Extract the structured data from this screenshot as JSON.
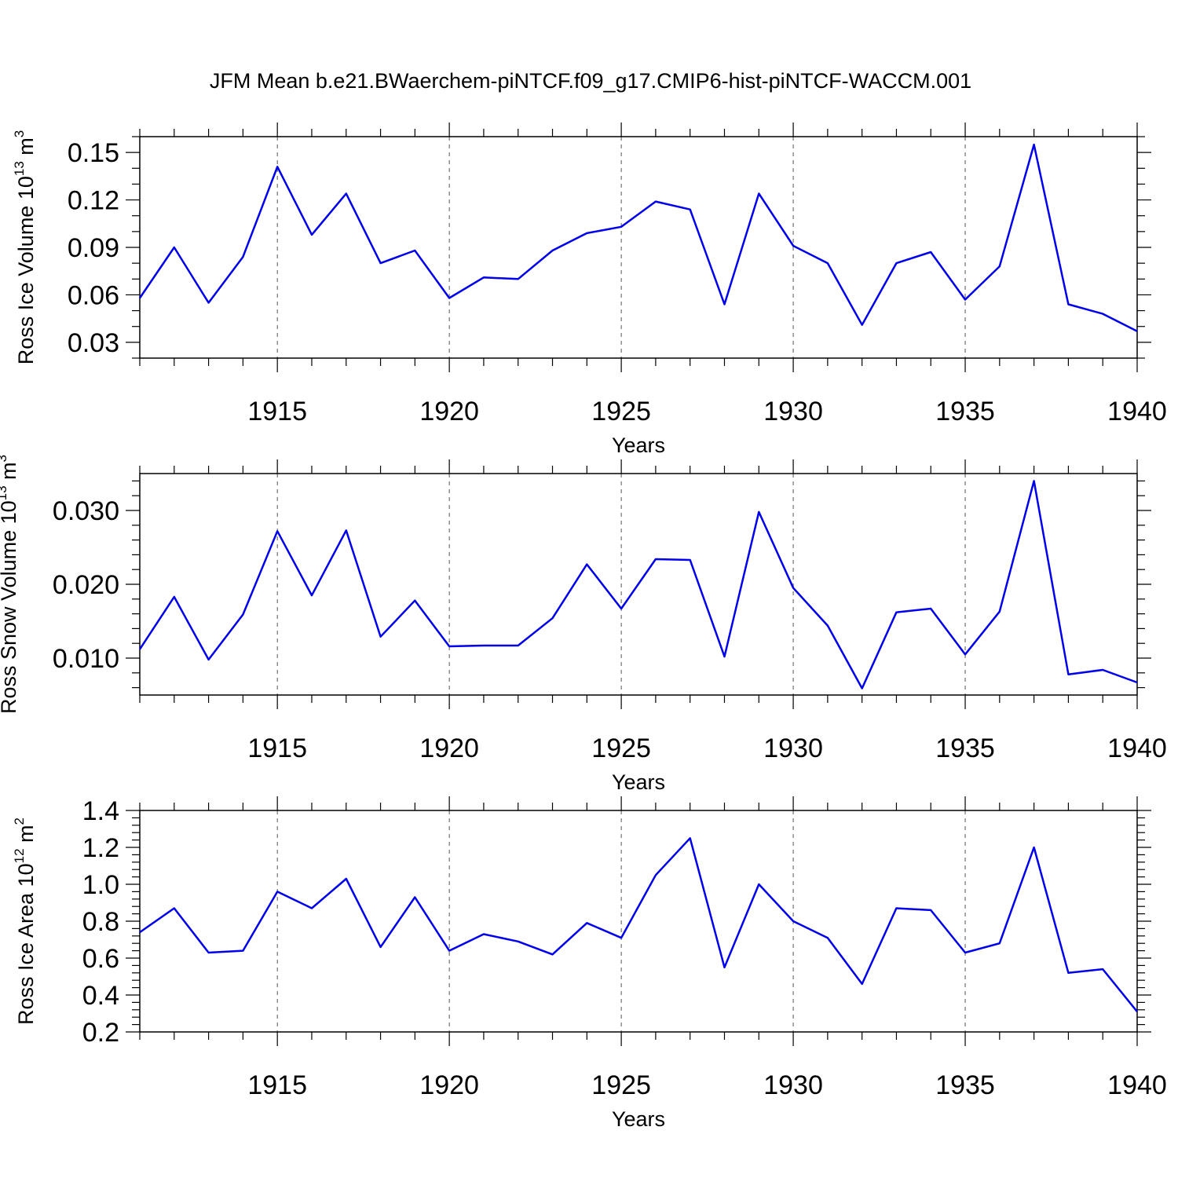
{
  "title": "JFM Mean b.e21.BWaerchem-piNTCF.f09_g17.CMIP6-hist-piNTCF-WACCM.001",
  "line_color": "#0000ee",
  "chart_data": [
    {
      "type": "line",
      "ylabel": "Ross Ice Volume 10",
      "ylabel_exp": "13",
      "ylabel_unit": " m",
      "ylabel_unit_exp": "3",
      "xlabel": "Years",
      "xlim": [
        1911,
        1940
      ],
      "ylim": [
        0.02,
        0.16
      ],
      "yticks": [
        0.03,
        0.06,
        0.09,
        0.12,
        0.15
      ],
      "yticks_labels": [
        "0.03",
        "0.06",
        "0.09",
        "0.12",
        "0.15"
      ],
      "yminor": 0.01,
      "xticks": [
        1915,
        1920,
        1925,
        1930,
        1935,
        1940
      ],
      "xticks_labels": [
        "1915",
        "1920",
        "1925",
        "1930",
        "1935",
        "1940"
      ],
      "grid_x": true,
      "x": [
        1911,
        1912,
        1913,
        1914,
        1915,
        1916,
        1917,
        1918,
        1919,
        1920,
        1921,
        1922,
        1923,
        1924,
        1925,
        1926,
        1927,
        1928,
        1929,
        1930,
        1931,
        1932,
        1933,
        1934,
        1935,
        1936,
        1937,
        1938,
        1939,
        1940
      ],
      "values": [
        0.058,
        0.09,
        0.055,
        0.084,
        0.141,
        0.098,
        0.124,
        0.08,
        0.088,
        0.058,
        0.071,
        0.07,
        0.088,
        0.099,
        0.103,
        0.119,
        0.114,
        0.054,
        0.124,
        0.091,
        0.08,
        0.041,
        0.08,
        0.087,
        0.057,
        0.078,
        0.155,
        0.054,
        0.048,
        0.037
      ]
    },
    {
      "type": "line",
      "ylabel": "Ross Snow Volume 10",
      "ylabel_exp": "13",
      "ylabel_unit": " m",
      "ylabel_unit_exp": "3",
      "xlabel": "Years",
      "xlim": [
        1911,
        1940
      ],
      "ylim": [
        0.005,
        0.035
      ],
      "yticks": [
        0.01,
        0.02,
        0.03
      ],
      "yticks_labels": [
        "0.010",
        "0.020",
        "0.030"
      ],
      "yminor": 0.002,
      "xticks": [
        1915,
        1920,
        1925,
        1930,
        1935,
        1940
      ],
      "xticks_labels": [
        "1915",
        "1920",
        "1925",
        "1930",
        "1935",
        "1940"
      ],
      "grid_x": true,
      "x": [
        1911,
        1912,
        1913,
        1914,
        1915,
        1916,
        1917,
        1918,
        1919,
        1920,
        1921,
        1922,
        1923,
        1924,
        1925,
        1926,
        1927,
        1928,
        1929,
        1930,
        1931,
        1932,
        1933,
        1934,
        1935,
        1936,
        1937,
        1938,
        1939,
        1940
      ],
      "values": [
        0.0112,
        0.0183,
        0.0098,
        0.0159,
        0.0272,
        0.0185,
        0.0273,
        0.0129,
        0.0178,
        0.0116,
        0.0117,
        0.0117,
        0.0154,
        0.0227,
        0.0167,
        0.0234,
        0.0233,
        0.0102,
        0.0298,
        0.0195,
        0.0144,
        0.0059,
        0.0162,
        0.0167,
        0.0105,
        0.0163,
        0.034,
        0.0078,
        0.0084,
        0.0067
      ]
    },
    {
      "type": "line",
      "ylabel": "Ross Ice Area 10",
      "ylabel_exp": "12",
      "ylabel_unit": " m",
      "ylabel_unit_exp": "2",
      "xlabel": "Years",
      "xlim": [
        1911,
        1940
      ],
      "ylim": [
        0.2,
        1.4
      ],
      "yticks": [
        0.2,
        0.4,
        0.6,
        0.8,
        1.0,
        1.2,
        1.4
      ],
      "yticks_labels": [
        "0.2",
        "0.4",
        "0.6",
        "0.8",
        "1.0",
        "1.2",
        "1.4"
      ],
      "yminor": 0.04,
      "xticks": [
        1915,
        1920,
        1925,
        1930,
        1935,
        1940
      ],
      "xticks_labels": [
        "1915",
        "1920",
        "1925",
        "1930",
        "1935",
        "1940"
      ],
      "grid_x": true,
      "x": [
        1911,
        1912,
        1913,
        1914,
        1915,
        1916,
        1917,
        1918,
        1919,
        1920,
        1921,
        1922,
        1923,
        1924,
        1925,
        1926,
        1927,
        1928,
        1929,
        1930,
        1931,
        1932,
        1933,
        1934,
        1935,
        1936,
        1937,
        1938,
        1939,
        1940
      ],
      "values": [
        0.74,
        0.87,
        0.63,
        0.64,
        0.96,
        0.87,
        1.03,
        0.66,
        0.93,
        0.64,
        0.73,
        0.69,
        0.62,
        0.79,
        0.71,
        1.05,
        1.25,
        0.55,
        1.0,
        0.8,
        0.71,
        0.46,
        0.87,
        0.86,
        0.63,
        0.68,
        1.2,
        0.52,
        0.54,
        0.31
      ]
    }
  ]
}
